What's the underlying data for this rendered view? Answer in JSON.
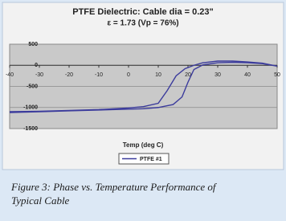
{
  "chart_data": {
    "type": "line",
    "title": "PTFE Dielectric: Cable dia = 0.23\"",
    "subtitle": "ε = 1.73 (Vp = 76%)",
    "x_label": "Temp (deg C)",
    "xlim": [
      -40,
      50
    ],
    "xticks": [
      -40,
      -30,
      -20,
      -10,
      0,
      10,
      20,
      30,
      40,
      50
    ],
    "ylim": [
      -1500,
      500
    ],
    "yticks": [
      500,
      0,
      -500,
      -1000,
      -1500
    ],
    "grid": true,
    "series": [
      {
        "name": "PTFE #1",
        "color": "#3b3b9c",
        "x": [
          -40,
          -30,
          -20,
          -10,
          0,
          5,
          10,
          13,
          16,
          19,
          22,
          25,
          30,
          35,
          40,
          45,
          50,
          45,
          40,
          35,
          30,
          25,
          22,
          20,
          18,
          15,
          10,
          5,
          0,
          -10,
          -20,
          -30,
          -40
        ],
        "values": [
          -1100,
          -1090,
          -1070,
          -1050,
          -1010,
          -980,
          -900,
          -600,
          -250,
          -80,
          0,
          60,
          100,
          100,
          80,
          50,
          -20,
          40,
          60,
          70,
          60,
          10,
          -100,
          -400,
          -750,
          -930,
          -1000,
          -1030,
          -1040,
          -1060,
          -1080,
          -1100,
          -1120
        ]
      }
    ],
    "caption": [
      "Figure 3: Phase vs. Temperature Performance of",
      "Typical Cable"
    ]
  }
}
